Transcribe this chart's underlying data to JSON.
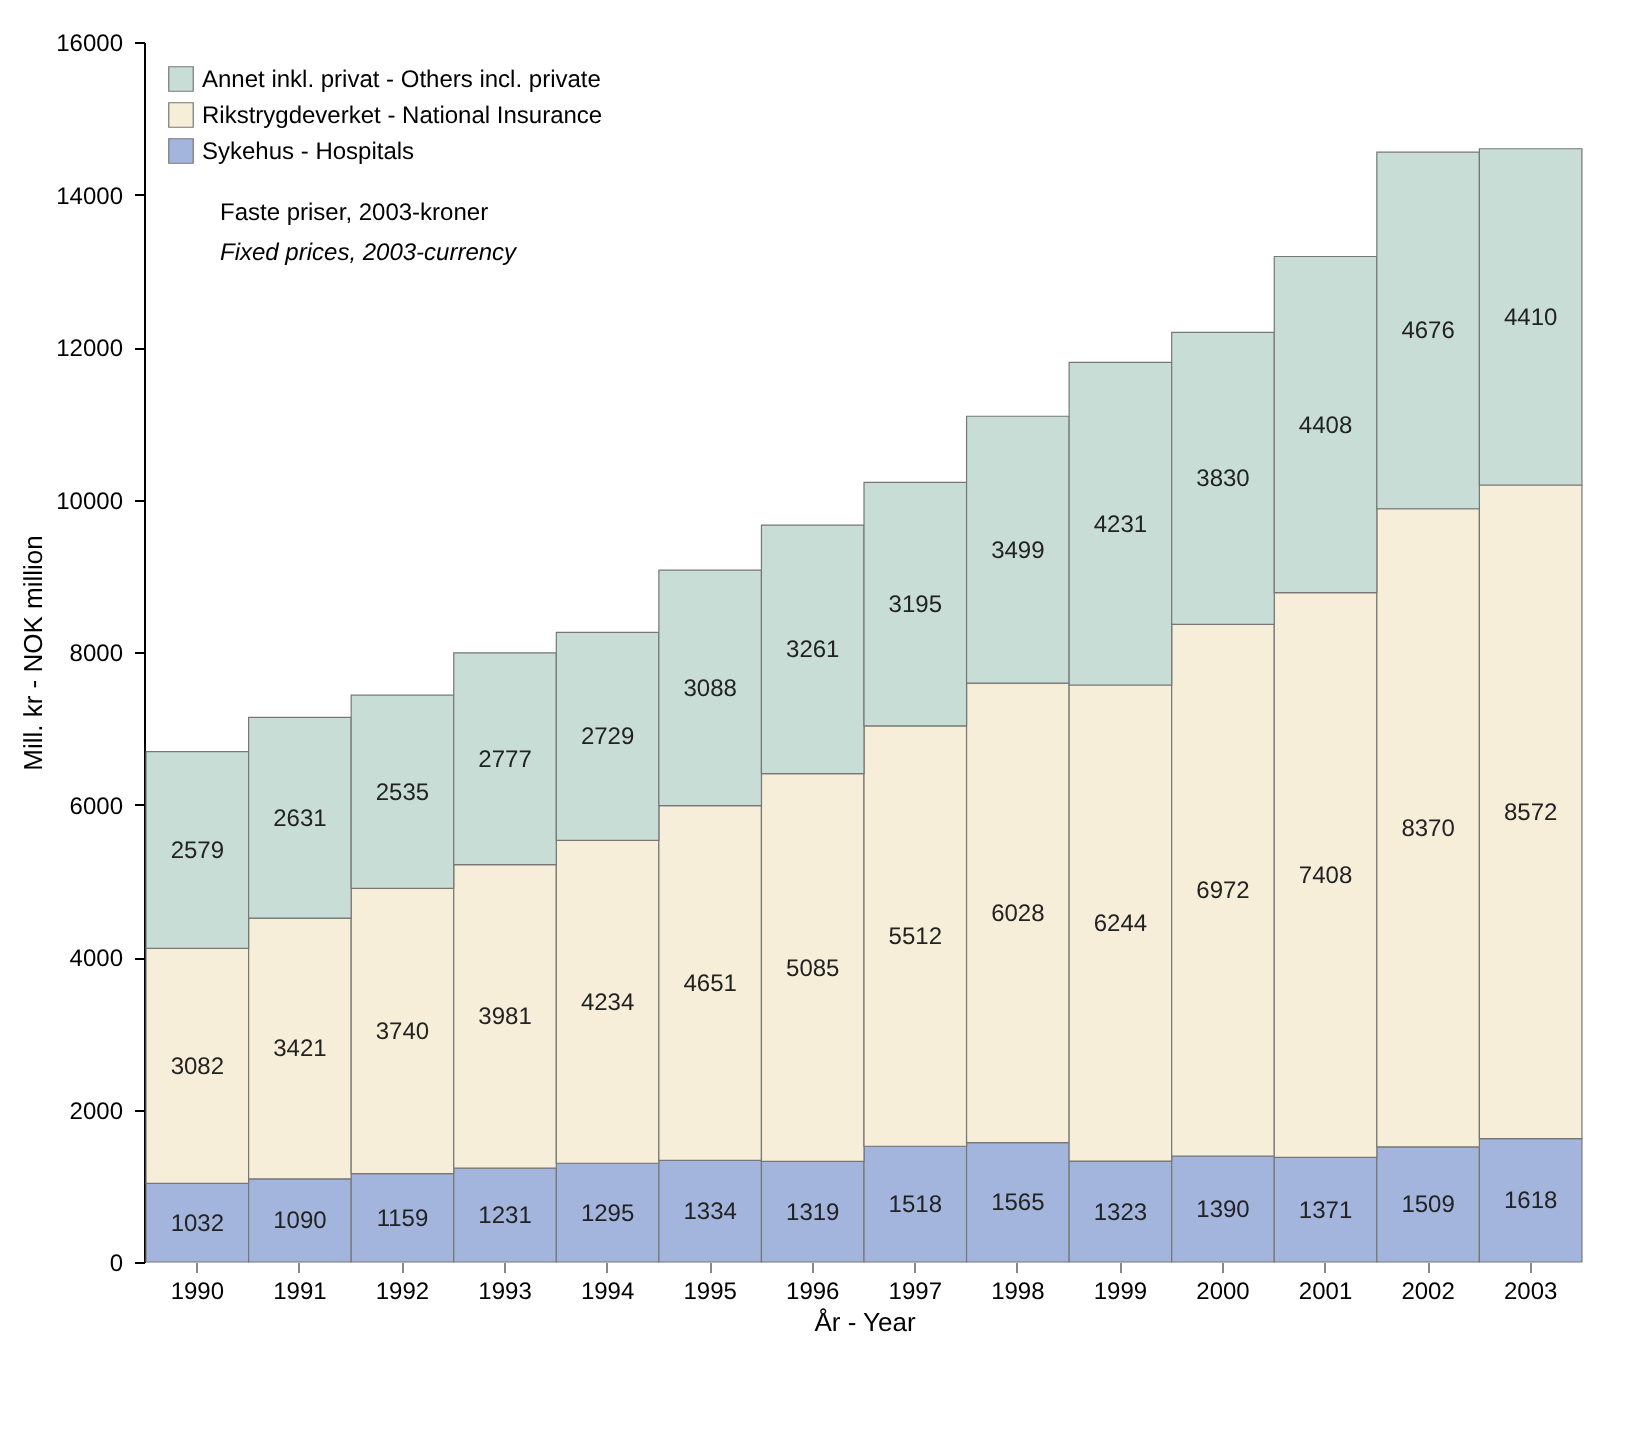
{
  "chart_data": {
    "type": "bar",
    "stacked": true,
    "xlabel": "År - Year",
    "ylabel": "Mill. kr - NOK million",
    "categories": [
      "1990",
      "1991",
      "1992",
      "1993",
      "1994",
      "1995",
      "1996",
      "1997",
      "1998",
      "1999",
      "2000",
      "2001",
      "2002",
      "2003"
    ],
    "series": [
      {
        "name": "Sykehus - Hospitals",
        "color": "#a3b5dc",
        "values": [
          1032,
          1090,
          1159,
          1231,
          1295,
          1334,
          1319,
          1518,
          1565,
          1323,
          1390,
          1371,
          1509,
          1618
        ]
      },
      {
        "name": "Rikstrygdeverket - National Insurance",
        "color": "#f6eed8",
        "values": [
          3082,
          3421,
          3740,
          3981,
          4234,
          4651,
          5085,
          5512,
          6028,
          6244,
          6972,
          7408,
          8370,
          8572
        ]
      },
      {
        "name": "Annet inkl. privat - Others incl. private",
        "color": "#c8ddd5",
        "values": [
          2579,
          2631,
          2535,
          2777,
          2729,
          3088,
          3261,
          3195,
          3499,
          4231,
          3830,
          4408,
          4676,
          4410
        ]
      }
    ],
    "ylim": [
      0,
      16000
    ],
    "yticks": [
      0,
      2000,
      4000,
      6000,
      8000,
      10000,
      12000,
      14000,
      16000
    ],
    "grid": false,
    "legend": "top left",
    "data_labels": true,
    "annotations": [
      "Faste priser, 2003-kroner",
      "Fixed prices, 2003-currency"
    ]
  }
}
